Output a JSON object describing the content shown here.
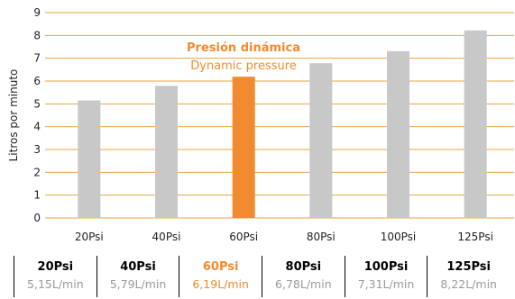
{
  "chart_data": {
    "type": "bar",
    "categories": [
      "20Psi",
      "40Psi",
      "60Psi",
      "80Psi",
      "100Psi",
      "125Psi"
    ],
    "values": [
      5.15,
      5.79,
      6.19,
      6.78,
      7.31,
      8.22
    ],
    "highlight_index": 2,
    "ylabel": "Litros por minuto",
    "ylim": [
      0,
      9
    ],
    "yticks": [
      0,
      1,
      2,
      3,
      4,
      5,
      6,
      7,
      8,
      9
    ],
    "grid": true,
    "annotation": {
      "line1": "Presión dinámica",
      "line2": "Dynamic pressure"
    },
    "colors": {
      "bar": "#c8c8c8",
      "highlight": "#f28a30",
      "grid": "#e8a640"
    }
  },
  "summary": [
    {
      "psi": "20Psi",
      "rate": "5,15L/min",
      "highlight": false
    },
    {
      "psi": "40Psi",
      "rate": "5,79L/min",
      "highlight": false
    },
    {
      "psi": "60Psi",
      "rate": "6,19L/min",
      "highlight": true
    },
    {
      "psi": "80Psi",
      "rate": "6,78L/min",
      "highlight": false
    },
    {
      "psi": "100Psi",
      "rate": "7,31L/min",
      "highlight": false
    },
    {
      "psi": "125Psi",
      "rate": "8,22L/min",
      "highlight": false
    }
  ]
}
